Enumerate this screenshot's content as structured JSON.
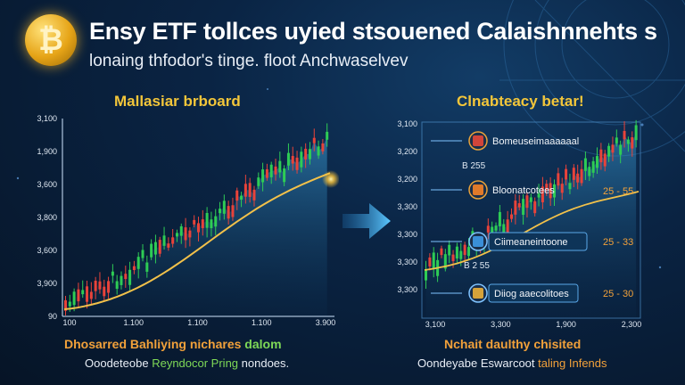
{
  "header": {
    "title": "Ensy ETF tollces uyied stsouened Calaishnnehts s",
    "subtitle": "lonaing thfodor's tinge. floot Anchwaselvev",
    "coin_icon": "bitcoin-coin-icon"
  },
  "left_panel": {
    "title": "Mallasiar brboard",
    "y_ticks": [
      "3,100",
      "1,900",
      "3,600",
      "3,800",
      "3,600",
      "3,900",
      "90"
    ],
    "x_ticks": [
      "100",
      "1,100",
      "1,100",
      "1,100",
      "3,900"
    ],
    "caption_line1_part1": "Dhosarred Bahliying",
    "caption_line1_part2": "nichares",
    "caption_line1_part3": "dalom",
    "caption_line2_part1": "Ooodeteobe",
    "caption_line2_part2": "Reyndocor Pring",
    "caption_line2_part3": "nondoes."
  },
  "arrow_icon": "right-arrow-icon",
  "right_panel": {
    "title": "Clnabteacy betar!",
    "y_ticks": [
      "3,100",
      "3,200",
      "3,200",
      "3,300",
      "3,300",
      "3,300",
      "3,300"
    ],
    "x_ticks": [
      "3,100",
      "3,300",
      "1,900",
      "2,300"
    ],
    "callouts": [
      {
        "label": "Bomeuseimaaaaaal",
        "icon": "red-block-icon"
      },
      {
        "label": "Bloonatcotees",
        "icon": "orange-block-icon"
      },
      {
        "label": "Ciimeaneintoone",
        "icon": "blue-block-icon"
      },
      {
        "label": "Diiog aaecolitoes",
        "icon": "gold-block-icon"
      }
    ],
    "side_labels": [
      "25 - 55",
      "25 - 33",
      "25 - 30"
    ],
    "small_labels": [
      "B 255",
      "B 2 55"
    ],
    "caption_line1": "Nchait daulthy chisited",
    "caption_line2_part1": "Oondeyabe Eswarcoot",
    "caption_line2_part2": "taling",
    "caption_line2_part3": "Infends"
  },
  "colors": {
    "accent_gold": "#f3c63a",
    "candle_up": "#2ecc55",
    "candle_down": "#e8433a",
    "trend_line": "#f2c14a",
    "caption_green": "#7ed957",
    "caption_orange": "#f2a13a"
  }
}
